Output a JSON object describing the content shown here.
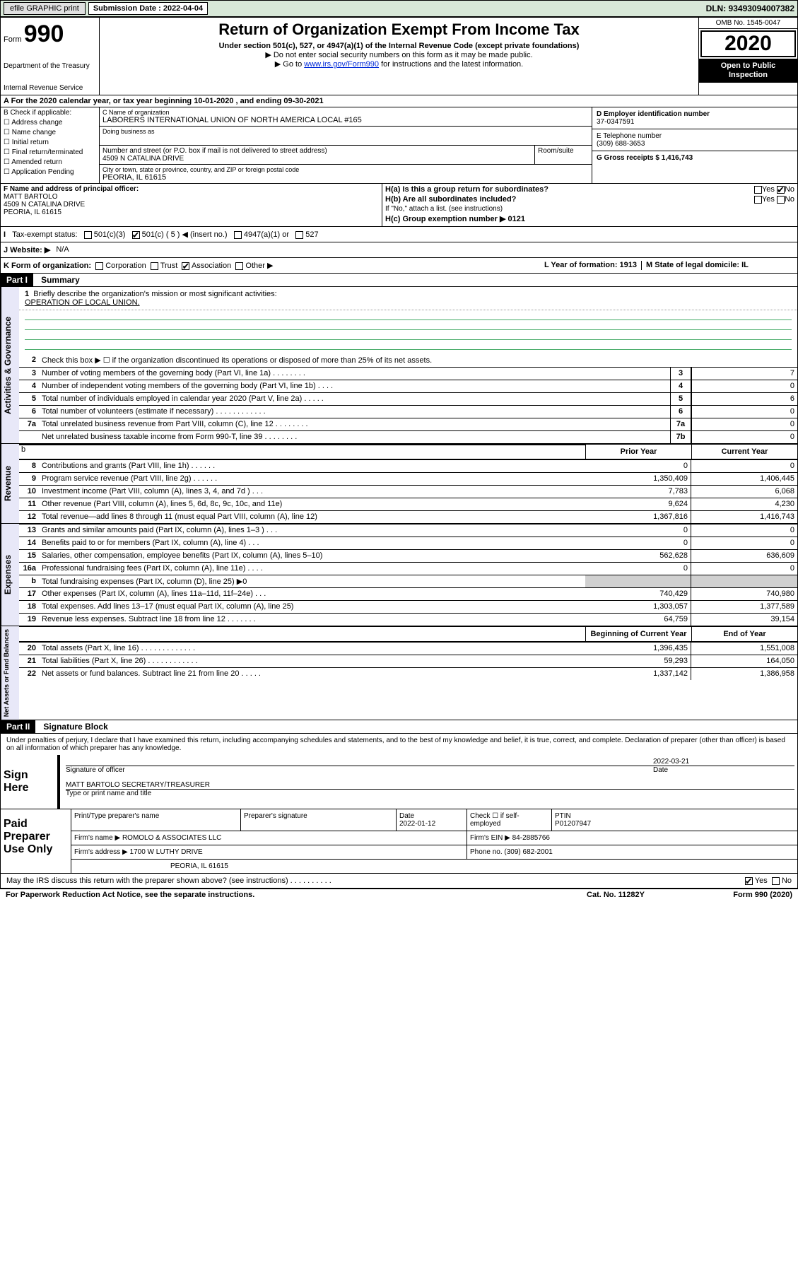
{
  "topbar": {
    "efile_label": "efile GRAPHIC print",
    "submission_label": "Submission Date : 2022-04-04",
    "dln_label": "DLN: 93493094007382"
  },
  "header": {
    "form_prefix": "Form",
    "form_number": "990",
    "dept1": "Department of the Treasury",
    "dept2": "Internal Revenue Service",
    "title": "Return of Organization Exempt From Income Tax",
    "subtitle1": "Under section 501(c), 527, or 4947(a)(1) of the Internal Revenue Code (except private foundations)",
    "subtitle2": "Do not enter social security numbers on this form as it may be made public.",
    "subtitle3_pre": "Go to ",
    "subtitle3_link": "www.irs.gov/Form990",
    "subtitle3_post": " for instructions and the latest information.",
    "omb": "OMB No. 1545-0047",
    "year": "2020",
    "inspect1": "Open to Public",
    "inspect2": "Inspection"
  },
  "period": {
    "text": "For the 2020 calendar year, or tax year beginning 10-01-2020     , and ending 09-30-2021"
  },
  "boxB": {
    "label": "B Check if applicable:",
    "items": [
      "Address change",
      "Name change",
      "Initial return",
      "Final return/terminated",
      "Amended return",
      "Application Pending"
    ]
  },
  "boxC": {
    "name_label": "C Name of organization",
    "name_value": "LABORERS INTERNATIONAL UNION OF NORTH AMERICA LOCAL #165",
    "dba_label": "Doing business as",
    "street_label": "Number and street (or P.O. box if mail is not delivered to street address)",
    "room_label": "Room/suite",
    "street_value": "4509 N CATALINA DRIVE",
    "city_label": "City or town, state or province, country, and ZIP or foreign postal code",
    "city_value": "PEORIA, IL  61615"
  },
  "boxD": {
    "ein_label": "D Employer identification number",
    "ein_value": "37-0347591",
    "phone_label": "E Telephone number",
    "phone_value": "(309) 688-3653",
    "gross_label": "G Gross receipts $ 1,416,743"
  },
  "boxF": {
    "label": "F  Name and address of principal officer:",
    "name": "MATT BARTOLO",
    "addr1": "4509 N CATALINA DRIVE",
    "addr2": "PEORIA, IL  61615"
  },
  "boxH": {
    "ha": "H(a)  Is this a group return for subordinates?",
    "hb": "H(b)  Are all subordinates included?",
    "hb_note": "If \"No,\" attach a list. (see instructions)",
    "hc": "H(c)  Group exemption number ▶   0121",
    "yes": "Yes",
    "no": "No"
  },
  "taxStatus": {
    "label": "Tax-exempt status:",
    "o1": "501(c)(3)",
    "o2": "501(c) ( 5 ) ◀ (insert no.)",
    "o3": "4947(a)(1) or",
    "o4": "527"
  },
  "website": {
    "label": "J   Website: ▶",
    "value": "N/A"
  },
  "rowK": {
    "label": "K Form of organization:",
    "corp": "Corporation",
    "trust": "Trust",
    "assoc": "Association",
    "other": "Other ▶",
    "l_label": "L Year of formation: 1913",
    "m_label": "M State of legal domicile: IL"
  },
  "part1": {
    "header": "Part I",
    "title": "Summary",
    "q1": "Briefly describe the organization's mission or most significant activities:",
    "q1v": "OPERATION OF LOCAL UNION.",
    "q2": "Check this box ▶ ☐  if the organization discontinued its operations or disposed of more than 25% of its net assets.",
    "tab_gov": "Activities & Governance",
    "tab_rev": "Revenue",
    "tab_exp": "Expenses",
    "tab_net": "Net Assets or Fund Balances",
    "col_prior": "Prior Year",
    "col_current": "Current Year",
    "col_begin": "Beginning of Current Year",
    "col_end": "End of Year",
    "rows_gov": [
      {
        "n": "3",
        "d": "Number of voting members of the governing body (Part VI, line 1a)   .    .    .    .    .    .    .    .",
        "rc": "3",
        "v": "7"
      },
      {
        "n": "4",
        "d": "Number of independent voting members of the governing body (Part VI, line 1b)    .    .    .    .",
        "rc": "4",
        "v": "0"
      },
      {
        "n": "5",
        "d": "Total number of individuals employed in calendar year 2020 (Part V, line 2a)    .    .    .    .    .",
        "rc": "5",
        "v": "6"
      },
      {
        "n": "6",
        "d": "Total number of volunteers (estimate if necessary)    .    .    .    .    .    .    .    .    .    .    .    .",
        "rc": "6",
        "v": "0"
      },
      {
        "n": "7a",
        "d": "Total unrelated business revenue from Part VIII, column (C), line 12   .    .    .    .    .    .    .    .",
        "rc": "7a",
        "v": "0"
      },
      {
        "n": "",
        "d": "Net unrelated business taxable income from Form 990-T, line 39    .    .    .    .    .    .    .    .",
        "rc": "7b",
        "v": "0"
      }
    ],
    "rows_rev": [
      {
        "n": "8",
        "d": "Contributions and grants (Part VIII, line 1h)   .    .    .    .    .    .",
        "v1": "0",
        "v2": "0"
      },
      {
        "n": "9",
        "d": "Program service revenue (Part VIII, line 2g)    .    .    .    .    .    .",
        "v1": "1,350,409",
        "v2": "1,406,445"
      },
      {
        "n": "10",
        "d": "Investment income (Part VIII, column (A), lines 3, 4, and 7d )   .    .    .",
        "v1": "7,783",
        "v2": "6,068"
      },
      {
        "n": "11",
        "d": "Other revenue (Part VIII, column (A), lines 5, 6d, 8c, 9c, 10c, and 11e)",
        "v1": "9,624",
        "v2": "4,230"
      },
      {
        "n": "12",
        "d": "Total revenue—add lines 8 through 11 (must equal Part VIII, column (A), line 12)",
        "v1": "1,367,816",
        "v2": "1,416,743"
      }
    ],
    "rows_exp": [
      {
        "n": "13",
        "d": "Grants and similar amounts paid (Part IX, column (A), lines 1–3 )   .    .    .",
        "v1": "0",
        "v2": "0"
      },
      {
        "n": "14",
        "d": "Benefits paid to or for members (Part IX, column (A), line 4)   .    .    .",
        "v1": "0",
        "v2": "0"
      },
      {
        "n": "15",
        "d": "Salaries, other compensation, employee benefits (Part IX, column (A), lines 5–10)",
        "v1": "562,628",
        "v2": "636,609"
      },
      {
        "n": "16a",
        "d": "Professional fundraising fees (Part IX, column (A), line 11e)    .    .    .    .",
        "v1": "0",
        "v2": "0"
      },
      {
        "n": "b",
        "d": "Total fundraising expenses (Part IX, column (D), line 25) ▶0",
        "v1": "",
        "v2": "",
        "grey": true
      },
      {
        "n": "17",
        "d": "Other expenses (Part IX, column (A), lines 11a–11d, 11f–24e)   .    .    .",
        "v1": "740,429",
        "v2": "740,980"
      },
      {
        "n": "18",
        "d": "Total expenses. Add lines 13–17 (must equal Part IX, column (A), line 25)",
        "v1": "1,303,057",
        "v2": "1,377,589"
      },
      {
        "n": "19",
        "d": "Revenue less expenses. Subtract line 18 from line 12    .    .    .    .    .    .    .",
        "v1": "64,759",
        "v2": "39,154"
      }
    ],
    "rows_net": [
      {
        "n": "20",
        "d": "Total assets (Part X, line 16)   .    .    .    .    .    .    .    .    .    .    .    .    .",
        "v1": "1,396,435",
        "v2": "1,551,008"
      },
      {
        "n": "21",
        "d": "Total liabilities (Part X, line 26)   .    .    .    .    .    .    .    .    .    .    .    .",
        "v1": "59,293",
        "v2": "164,050"
      },
      {
        "n": "22",
        "d": "Net assets or fund balances. Subtract line 21 from line 20    .    .    .    .    .",
        "v1": "1,337,142",
        "v2": "1,386,958"
      }
    ]
  },
  "part2": {
    "header": "Part II",
    "title": "Signature Block",
    "perjury": "Under penalties of perjury, I declare that I have examined this return, including accompanying schedules and statements, and to the best of my knowledge and belief, it is true, correct, and complete. Declaration of preparer (other than officer) is based on all information of which preparer has any knowledge."
  },
  "sign": {
    "label": "Sign Here",
    "sig_officer": "Signature of officer",
    "date_label": "Date",
    "date_value": "2022-03-21",
    "name_title": "MATT BARTOLO  SECRETARY/TREASURER",
    "type_label": "Type or print name and title"
  },
  "paid": {
    "label": "Paid Preparer Use Only",
    "hdr_name": "Print/Type preparer's name",
    "hdr_sig": "Preparer's signature",
    "hdr_date": "Date",
    "date_val": "2022-01-12",
    "hdr_check": "Check ☐ if self-employed",
    "hdr_ptin": "PTIN",
    "ptin_val": "P01207947",
    "firm_name_lbl": "Firm's name      ▶",
    "firm_name": "ROMOLO & ASSOCIATES LLC",
    "firm_ein_lbl": "Firm's EIN ▶",
    "firm_ein": "84-2885766",
    "firm_addr_lbl": "Firm's address  ▶",
    "firm_addr1": "1700 W LUTHY DRIVE",
    "firm_addr2": "PEORIA, IL  61615",
    "phone_lbl": "Phone no.",
    "phone": "(309) 682-2001"
  },
  "footer": {
    "discuss": "May the IRS discuss this return with the preparer shown above? (see instructions)   .    .    .    .    .    .    .    .    .    .",
    "yes": "Yes",
    "no": "No",
    "paperwork": "For Paperwork Reduction Act Notice, see the separate instructions.",
    "cat": "Cat. No. 11282Y",
    "form": "Form 990 (2020)"
  }
}
